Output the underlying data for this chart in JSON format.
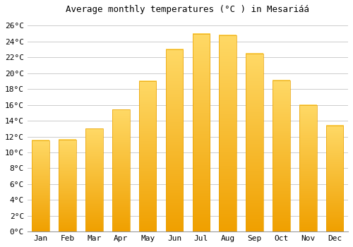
{
  "title": "Average monthly temperatures (°C ) in Mesariáá",
  "months": [
    "Jan",
    "Feb",
    "Mar",
    "Apr",
    "May",
    "Jun",
    "Jul",
    "Aug",
    "Sep",
    "Oct",
    "Nov",
    "Dec"
  ],
  "temperatures": [
    11.5,
    11.6,
    13.0,
    15.4,
    19.0,
    23.0,
    25.0,
    24.8,
    22.5,
    19.1,
    16.0,
    13.4
  ],
  "bar_color_bottom": "#F0A000",
  "bar_color_top": "#FFD966",
  "bar_edge_color": "#E8A000",
  "background_color": "#FFFFFF",
  "grid_color": "#CCCCCC",
  "yticks": [
    0,
    2,
    4,
    6,
    8,
    10,
    12,
    14,
    16,
    18,
    20,
    22,
    24,
    26
  ],
  "ylim": [
    0,
    27
  ],
  "title_fontsize": 9,
  "tick_fontsize": 8,
  "font_family": "monospace",
  "bar_width": 0.65
}
